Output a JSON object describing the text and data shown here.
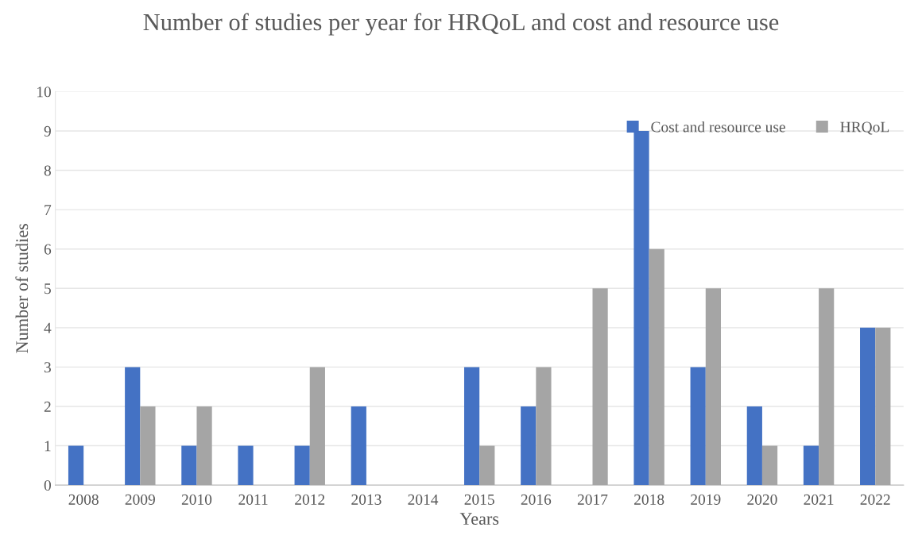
{
  "chart_data": {
    "type": "bar",
    "title": "Number of studies per year for HRQoL and cost and resource use",
    "xlabel": "Years",
    "ylabel": "Number of studies",
    "categories": [
      "2008",
      "2009",
      "2010",
      "2011",
      "2012",
      "2013",
      "2014",
      "2015",
      "2016",
      "2017",
      "2018",
      "2019",
      "2020",
      "2021",
      "2022"
    ],
    "series": [
      {
        "name": "Cost and resource use",
        "color": "#4472c4",
        "values": [
          1,
          3,
          1,
          1,
          1,
          2,
          0,
          3,
          2,
          0,
          9,
          3,
          2,
          1,
          4
        ]
      },
      {
        "name": "HRQoL",
        "color": "#a5a5a5",
        "values": [
          0,
          2,
          2,
          0,
          3,
          0,
          0,
          1,
          3,
          5,
          6,
          5,
          1,
          5,
          4
        ]
      }
    ],
    "ylim": [
      0,
      10
    ],
    "yticks": [
      0,
      1,
      2,
      3,
      4,
      5,
      6,
      7,
      8,
      9,
      10
    ],
    "grid": "y",
    "legend": "top right"
  }
}
